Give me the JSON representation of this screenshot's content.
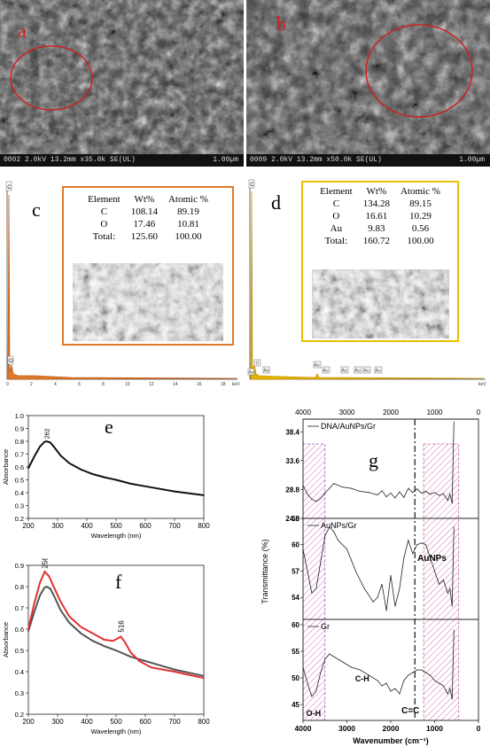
{
  "panels": {
    "a": {
      "label": "a",
      "footer": "0002 2.0kV 13.2mm x35.0k SE(UL)",
      "scale": "1.00µm"
    },
    "b": {
      "label": "b",
      "footer": "0009 2.0kV 13.2mm x50.0k SE(UL)",
      "scale": "1.00µm"
    },
    "c": {
      "label": "c",
      "table": {
        "headers": [
          "Element",
          "Wt%",
          "Atomic %"
        ],
        "rows": [
          [
            "C",
            "108.14",
            "89.19"
          ],
          [
            "O",
            "17.46",
            "10.81"
          ],
          [
            "Total:",
            "125.60",
            "100.00"
          ]
        ]
      },
      "peaks": [
        "C",
        "O"
      ],
      "axis_ticks": [
        "0",
        "2",
        "4",
        "6",
        "8",
        "10",
        "12",
        "14",
        "16",
        "18"
      ],
      "axis_unit": "keV"
    },
    "d": {
      "label": "d",
      "table": {
        "headers": [
          "Element",
          "Wt%",
          "Atomic %"
        ],
        "rows": [
          [
            "C",
            "134.28",
            "89.15"
          ],
          [
            "O",
            "16.61",
            "10.29"
          ],
          [
            "Au",
            "9.83",
            "0.56"
          ],
          [
            "Total:",
            "160.72",
            "100.00"
          ]
        ]
      },
      "peaks": [
        "C",
        "Au",
        "O",
        "Au",
        "Au",
        "Au",
        "Au",
        "Au",
        "Au",
        "Au"
      ],
      "axis_unit": "keV"
    },
    "e": {
      "label": "e"
    },
    "f": {
      "label": "f"
    },
    "g": {
      "label": "g",
      "annotations": {
        "auNPs": "AuNPs",
        "ch": "C-H",
        "cc": "C=C",
        "oh": "O-H"
      }
    }
  },
  "chart_data": [
    {
      "panel": "e",
      "type": "line",
      "xlabel": "Wavelength (nm)",
      "ylabel": "Absorbance",
      "xlim": [
        200,
        800
      ],
      "ylim": [
        0.2,
        1.0
      ],
      "xticks": [
        200,
        300,
        400,
        500,
        600,
        700,
        800
      ],
      "yticks": [
        0.2,
        0.3,
        0.4,
        0.5,
        0.6,
        0.7,
        0.8,
        0.9,
        1.0
      ],
      "peak_label": "262",
      "series": [
        {
          "color": "#111111",
          "x": [
            200,
            220,
            240,
            255,
            262,
            275,
            290,
            310,
            340,
            380,
            420,
            460,
            500,
            550,
            600,
            650,
            700,
            750,
            800
          ],
          "y": [
            0.59,
            0.68,
            0.76,
            0.795,
            0.8,
            0.79,
            0.75,
            0.69,
            0.63,
            0.58,
            0.545,
            0.52,
            0.5,
            0.47,
            0.45,
            0.43,
            0.41,
            0.395,
            0.38
          ]
        }
      ]
    },
    {
      "panel": "f",
      "type": "line",
      "xlabel": "Wavelength (nm)",
      "ylabel": "Absorbance",
      "xlim": [
        200,
        800
      ],
      "ylim": [
        0.2,
        0.9
      ],
      "xticks": [
        200,
        300,
        400,
        500,
        600,
        700,
        800
      ],
      "yticks": [
        0.2,
        0.3,
        0.4,
        0.5,
        0.6,
        0.7,
        0.8,
        0.9
      ],
      "peak_labels": [
        "256",
        "516"
      ],
      "series": [
        {
          "color": "#555555",
          "x": [
            200,
            220,
            240,
            255,
            262,
            275,
            290,
            310,
            340,
            380,
            420,
            460,
            500,
            550,
            600,
            650,
            700,
            750,
            800
          ],
          "y": [
            0.59,
            0.68,
            0.76,
            0.795,
            0.8,
            0.79,
            0.75,
            0.69,
            0.63,
            0.58,
            0.545,
            0.52,
            0.5,
            0.47,
            0.45,
            0.43,
            0.41,
            0.395,
            0.38
          ]
        },
        {
          "color": "#e03030",
          "x": [
            200,
            220,
            240,
            256,
            270,
            290,
            310,
            340,
            380,
            420,
            460,
            490,
            510,
            516,
            530,
            550,
            580,
            620,
            660,
            700,
            750,
            800
          ],
          "y": [
            0.6,
            0.72,
            0.82,
            0.87,
            0.85,
            0.79,
            0.73,
            0.66,
            0.61,
            0.58,
            0.55,
            0.545,
            0.56,
            0.565,
            0.54,
            0.49,
            0.45,
            0.42,
            0.41,
            0.4,
            0.385,
            0.37
          ]
        }
      ]
    },
    {
      "panel": "g",
      "type": "line",
      "xlabel": "Wavenumber (cm⁻¹)",
      "ylabel": "Transmittance (%)",
      "xlim": [
        4000,
        0
      ],
      "xticks": [
        4000,
        3000,
        2000,
        1000,
        0
      ],
      "subplots": [
        {
          "legend": "DNA/AuNPs/Gr",
          "ylim": [
            24.0,
            40.5
          ],
          "yticks": [
            24.0,
            28.8,
            33.6,
            38.4
          ],
          "x": [
            4000,
            3900,
            3800,
            3700,
            3600,
            3500,
            3400,
            3300,
            3100,
            2900,
            2700,
            2500,
            2300,
            2200,
            2100,
            2000,
            1900,
            1800,
            1700,
            1600,
            1500,
            1400,
            1300,
            1200,
            1100,
            1000,
            900,
            800,
            700,
            650,
            600,
            560
          ],
          "y": [
            29.5,
            28.0,
            27.2,
            26.8,
            27.3,
            28.2,
            29.0,
            29.8,
            29.2,
            29.0,
            28.5,
            28.3,
            27.9,
            28.6,
            27.6,
            28.2,
            27.4,
            28.4,
            27.5,
            29.0,
            28.3,
            28.9,
            28.2,
            28.5,
            28.0,
            28.3,
            27.8,
            28.1,
            27.0,
            28.0,
            26.5,
            40.0
          ]
        },
        {
          "legend": "AuNPs/Gr",
          "ylim": [
            51.5,
            63.0
          ],
          "yticks": [
            54,
            57,
            60,
            63
          ],
          "x": [
            4000,
            3900,
            3800,
            3700,
            3600,
            3500,
            3400,
            3300,
            3200,
            3000,
            2800,
            2600,
            2400,
            2300,
            2200,
            2100,
            2000,
            1900,
            1800,
            1700,
            1600,
            1500,
            1400,
            1300,
            1200,
            1100,
            1000,
            900,
            800,
            700,
            650,
            600,
            560
          ],
          "y": [
            59.5,
            57.0,
            54.5,
            55.0,
            58.0,
            61.0,
            62.0,
            61.5,
            60.5,
            59.5,
            57.0,
            55.0,
            53.5,
            54.0,
            55.5,
            52.5,
            56.5,
            53.0,
            55.0,
            58.5,
            60.5,
            59.0,
            60.0,
            60.2,
            60.0,
            58.5,
            57.0,
            55.5,
            56.0,
            54.5,
            55.0,
            53.0,
            62.0
          ]
        },
        {
          "legend": "Gr",
          "ylim": [
            42.0,
            61.0
          ],
          "yticks": [
            45,
            50,
            55,
            60
          ],
          "x": [
            4000,
            3900,
            3800,
            3700,
            3600,
            3500,
            3400,
            3300,
            3100,
            2900,
            2700,
            2500,
            2300,
            2200,
            2100,
            2000,
            1900,
            1800,
            1700,
            1600,
            1500,
            1400,
            1300,
            1200,
            1100,
            1000,
            900,
            800,
            700,
            650,
            600,
            560
          ],
          "y": [
            52.0,
            49.0,
            46.5,
            47.5,
            51.0,
            53.5,
            54.5,
            54.0,
            53.0,
            52.0,
            51.5,
            50.5,
            49.5,
            48.5,
            49.0,
            47.5,
            48.0,
            47.0,
            49.5,
            50.5,
            51.0,
            51.5,
            51.5,
            51.0,
            50.5,
            49.5,
            49.0,
            48.5,
            47.0,
            48.0,
            46.0,
            59.0
          ]
        }
      ]
    }
  ]
}
